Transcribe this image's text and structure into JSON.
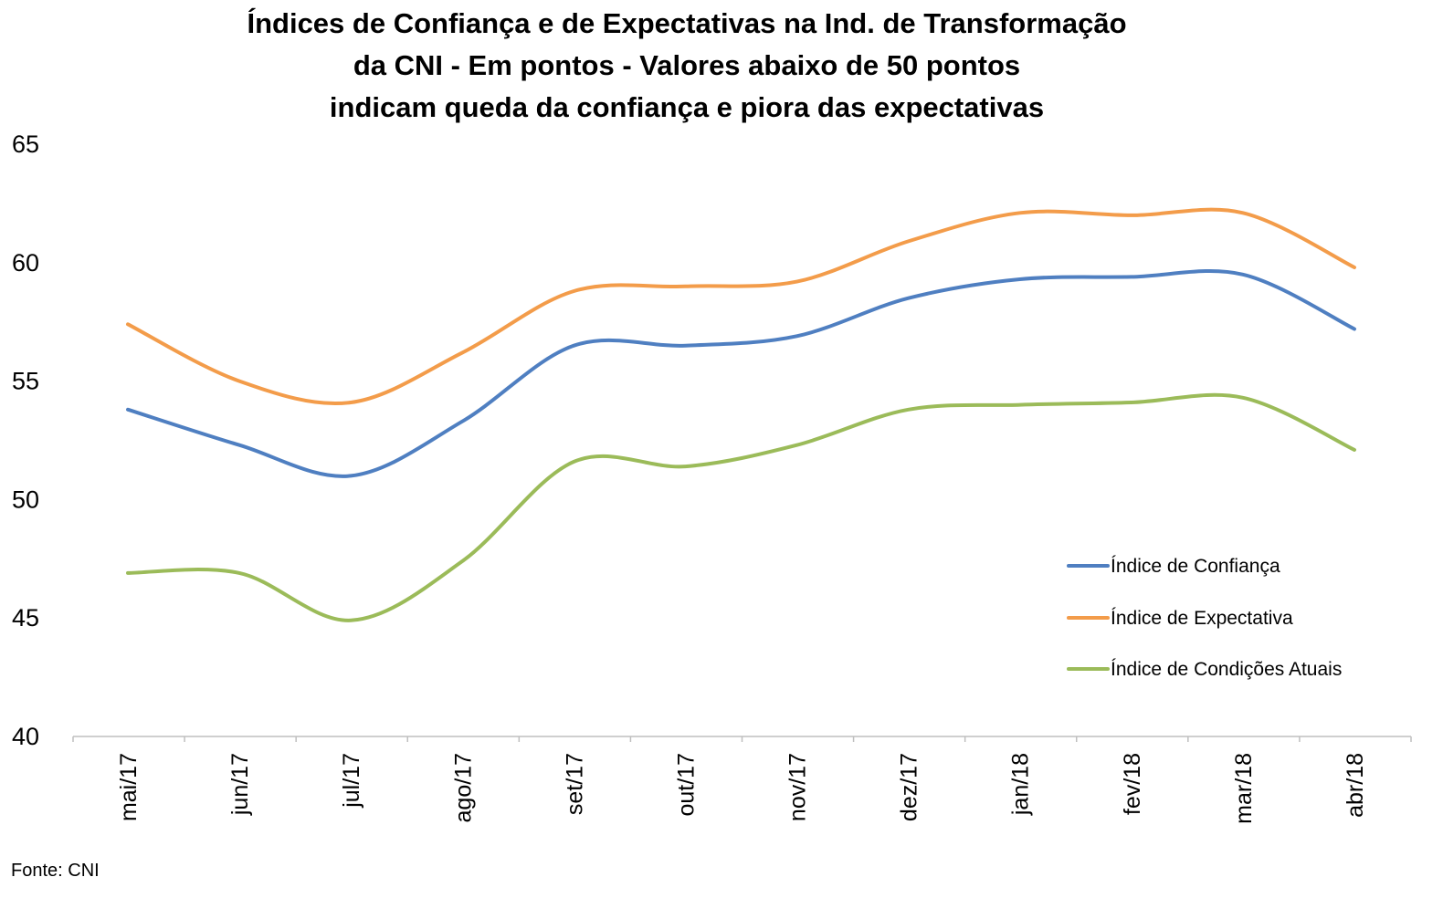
{
  "source": "Fonte: CNI",
  "chart_data": {
    "type": "line",
    "title_lines": [
      "Índices de Confiança e de Expectativas na Ind. de Transformação",
      "da CNI - Em pontos - Valores abaixo de 50 pontos",
      "indicam queda da confiança e piora das expectativas"
    ],
    "xlabel": "",
    "ylabel": "",
    "ylim": [
      40,
      65
    ],
    "yticks": [
      40,
      45,
      50,
      55,
      60,
      65
    ],
    "grid": false,
    "smooth": true,
    "legend_position": "bottom-right",
    "categories": [
      "mai/17",
      "jun/17",
      "jul/17",
      "ago/17",
      "set/17",
      "out/17",
      "nov/17",
      "dez/17",
      "jan/18",
      "fev/18",
      "mar/18",
      "abr/18"
    ],
    "series": [
      {
        "name": "Índice de Confiança",
        "color": "#4f7fc1",
        "values": [
          53.8,
          52.3,
          51.0,
          53.3,
          56.5,
          56.5,
          56.9,
          58.5,
          59.3,
          59.4,
          59.5,
          57.2
        ]
      },
      {
        "name": "Índice de Expectativa",
        "color": "#f39c4a",
        "values": [
          57.4,
          55.0,
          54.1,
          56.2,
          58.8,
          59.0,
          59.2,
          60.9,
          62.1,
          62.0,
          62.1,
          59.8
        ]
      },
      {
        "name": "Índice de Condições Atuais",
        "color": "#9bbb59",
        "values": [
          46.9,
          46.9,
          44.9,
          47.4,
          51.6,
          51.4,
          52.3,
          53.8,
          54.0,
          54.1,
          54.3,
          52.1
        ]
      }
    ]
  }
}
